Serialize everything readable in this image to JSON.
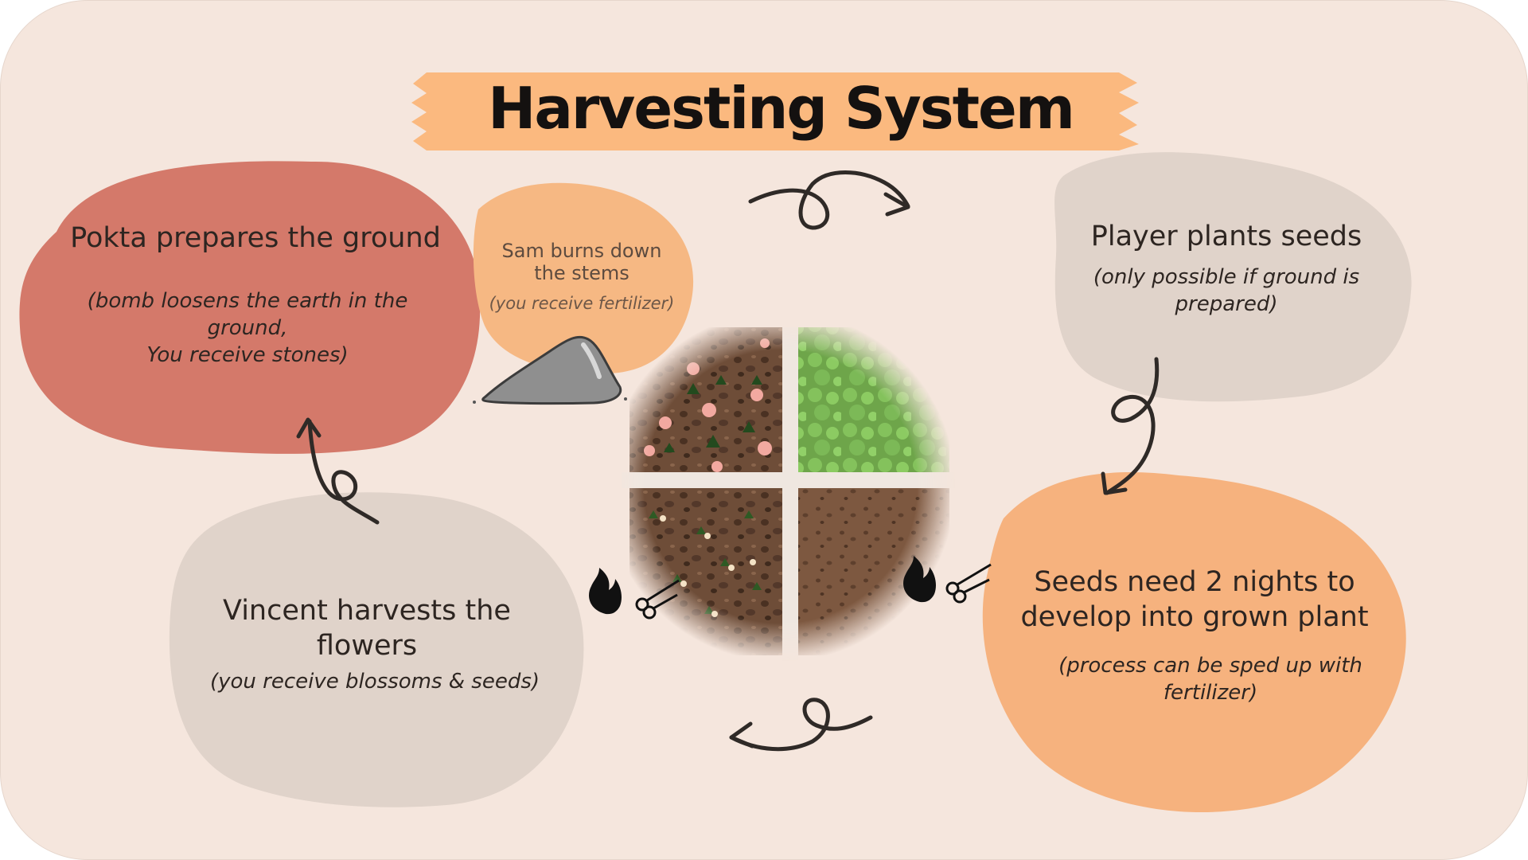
{
  "title": "Harvesting System",
  "steps": {
    "prepare": {
      "heading": "Pokta prepares the ground",
      "note_lines": [
        "(bomb loosens the earth in the",
        "ground,",
        "You receive stones)"
      ]
    },
    "burn": {
      "heading_lines": [
        "Sam burns down",
        "the stems"
      ],
      "note": "(you receive fertilizer)"
    },
    "plant": {
      "heading": "Player plants seeds",
      "note_lines": [
        "(only possible if ground is",
        "prepared)"
      ]
    },
    "grow": {
      "heading_lines": [
        "Seeds need 2 nights to",
        "develop into grown plant"
      ],
      "note_lines": [
        "(process can be sped up with",
        "fertilizer)"
      ]
    },
    "harvest": {
      "heading_lines": [
        "Vincent harvests the",
        "flowers"
      ],
      "note": "(you receive blossoms & seeds)"
    }
  },
  "icons": [
    "stone-pile-icon",
    "fire-icon",
    "scissors-icon",
    "curly-arrow-icon"
  ],
  "colors": {
    "background": "#f5e6dd",
    "banner": "#fbb97f",
    "prepare_blob": "#d4796a",
    "burn_blob": "#f6b883",
    "plant_blob": "#e0d3ca",
    "grow_blob": "#f6b27e",
    "harvest_blob": "#e0d3ca",
    "ink": "#2d2521"
  }
}
